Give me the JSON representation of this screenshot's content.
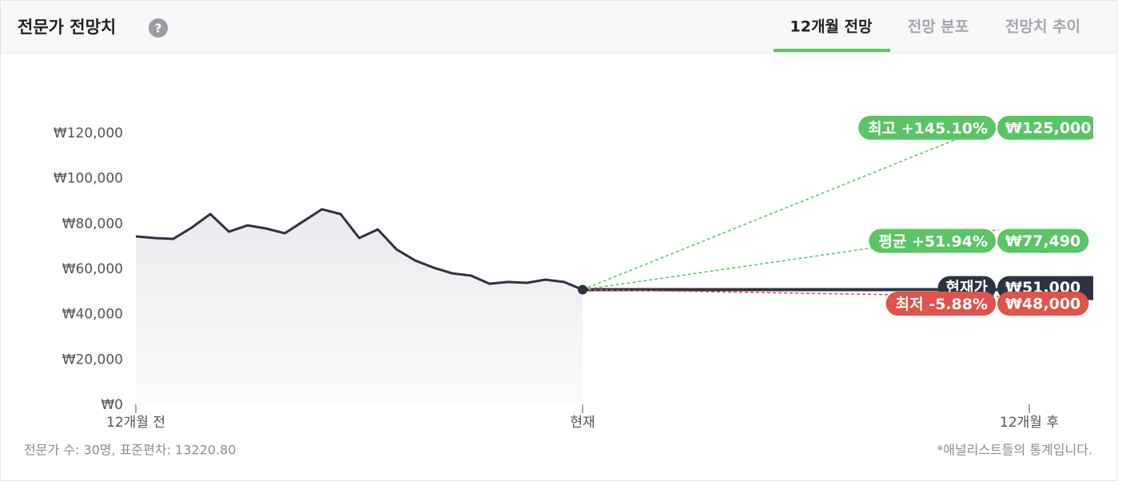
{
  "header": {
    "title": "전문가 전망치",
    "tabs": [
      "12개월 전망",
      "전망 분포",
      "전망치 추이"
    ]
  },
  "chart_data": {
    "type": "line",
    "x": [
      -12,
      -11.5,
      -11,
      -10.5,
      -10,
      -9.5,
      -9,
      -8.5,
      -8,
      -7.5,
      -7,
      -6.5,
      -6,
      -5.5,
      -5,
      -4.5,
      -4,
      -3.5,
      -3,
      -2.5,
      -2,
      -1.5,
      -1,
      -0.5,
      0
    ],
    "series": [
      {
        "color": "#2d3340",
        "values": [
          74500,
          73800,
          73400,
          78400,
          84400,
          76600,
          79400,
          78000,
          75900,
          81200,
          86500,
          84400,
          73800,
          77600,
          68800,
          63900,
          60700,
          58200,
          57200,
          53600,
          54400,
          54000,
          55400,
          54400,
          51000
        ]
      }
    ],
    "xlim": [
      -12,
      12
    ],
    "xticks": [
      {
        "value": -12,
        "label": "12개월 전"
      },
      {
        "value": 0,
        "label": "현재"
      },
      {
        "value": 12,
        "label": "12개월 후"
      }
    ],
    "ylim": [
      0,
      120000
    ],
    "yticks": [
      {
        "value": 0,
        "label": "₩0"
      },
      {
        "value": 20000,
        "label": "₩20,000"
      },
      {
        "value": 40000,
        "label": "₩40,000"
      },
      {
        "value": 60000,
        "label": "₩60,000"
      },
      {
        "value": 80000,
        "label": "₩80,000"
      },
      {
        "value": 100000,
        "label": "₩100,000"
      },
      {
        "value": 120000,
        "label": "₩120,000"
      }
    ],
    "current": {
      "name": "현재가",
      "value": 51000,
      "value_label": "₩51,000",
      "color": "#2d3340"
    },
    "targets": {
      "names": [
        "최고",
        "평균",
        "최저"
      ],
      "changes": [
        "+145.10%",
        "+51.94%",
        "-5.88%"
      ],
      "values": [
        125000,
        77490,
        48000
      ],
      "value_labels": [
        "₩125,000",
        "₩77,490",
        "₩48,000"
      ],
      "colors": [
        "#5ac466",
        "#5ac466",
        "#e0524a"
      ]
    }
  },
  "footer": {
    "left": "전문가 수: 30명, 표준편차: 13220.80",
    "right": "*애널리스트들의 통계입니다."
  }
}
